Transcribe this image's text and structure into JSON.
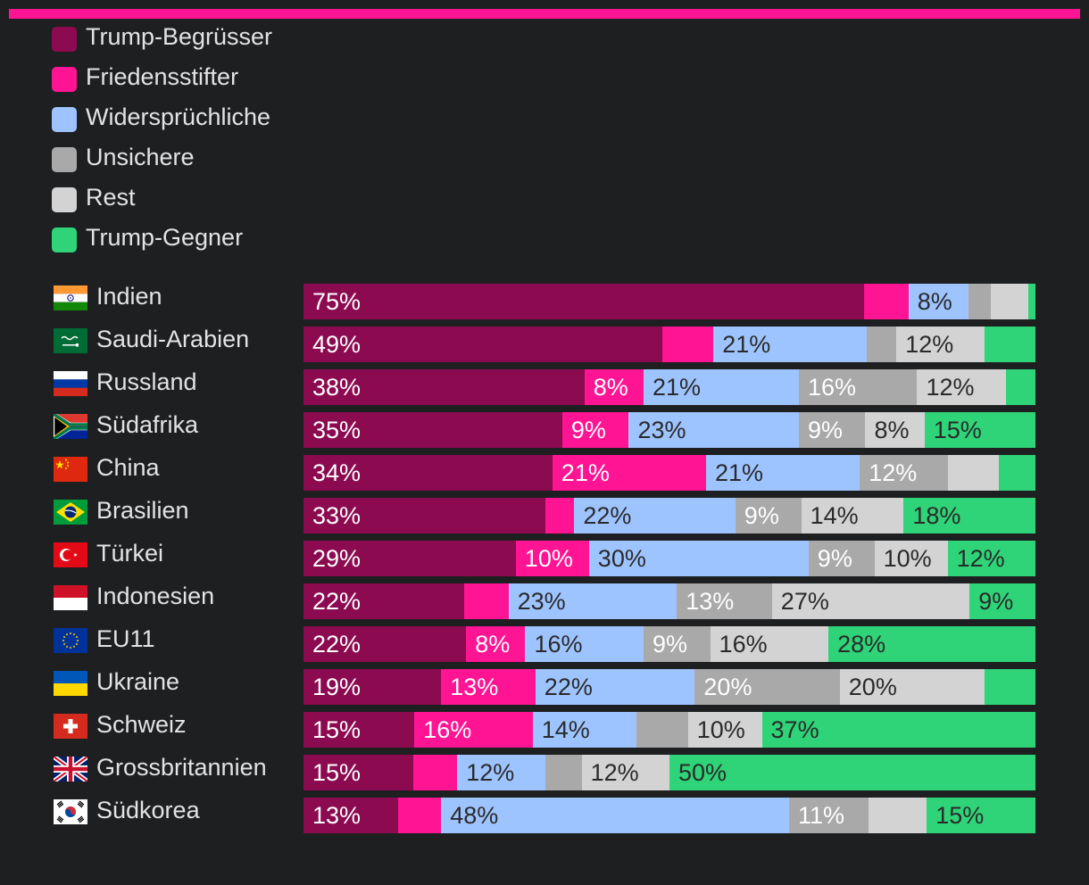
{
  "chart_data": {
    "type": "bar",
    "orientation": "horizontal",
    "stacked": true,
    "unit": "%",
    "series": [
      {
        "key": "begruesser",
        "name": "Trump-Begrüsser",
        "color": "#8b0a50",
        "text_color": "#ffffff"
      },
      {
        "key": "friedensstifter",
        "name": "Friedensstifter",
        "color": "#ff1493",
        "text_color": "#ffffff"
      },
      {
        "key": "widerspruechliche",
        "name": "Widersprüchliche",
        "color": "#9ec4ff",
        "text_color": "#2a2a2a"
      },
      {
        "key": "unsichere",
        "name": "Unsichere",
        "color": "#a9a9a9",
        "text_color": "#ffffff"
      },
      {
        "key": "rest",
        "name": "Rest",
        "color": "#d3d3d3",
        "text_color": "#2a2a2a"
      },
      {
        "key": "gegner",
        "name": "Trump-Gegner",
        "color": "#2ed477",
        "text_color": "#2a2a2a"
      }
    ],
    "categories": [
      {
        "name": "Indien",
        "flag": "india",
        "values": [
          75,
          6,
          8,
          3,
          5,
          1
        ],
        "labels": [
          "75%",
          "",
          "8%",
          "",
          "",
          ""
        ]
      },
      {
        "name": "Saudi-Arabien",
        "flag": "saudi",
        "values": [
          49,
          7,
          21,
          4,
          12,
          7
        ],
        "labels": [
          "49%",
          "",
          "21%",
          "",
          "12%",
          ""
        ]
      },
      {
        "name": "Russland",
        "flag": "russia",
        "values": [
          38,
          8,
          21,
          16,
          12,
          4
        ],
        "labels": [
          "38%",
          "8%",
          "21%",
          "16%",
          "12%",
          ""
        ]
      },
      {
        "name": "Südafrika",
        "flag": "southafrica",
        "values": [
          35,
          9,
          23,
          9,
          8,
          15
        ],
        "labels": [
          "35%",
          "9%",
          "23%",
          "9%",
          "8%",
          "15%"
        ]
      },
      {
        "name": "China",
        "flag": "china",
        "values": [
          34,
          21,
          21,
          12,
          7,
          5
        ],
        "labels": [
          "34%",
          "21%",
          "21%",
          "12%",
          "",
          ""
        ]
      },
      {
        "name": "Brasilien",
        "flag": "brazil",
        "values": [
          33,
          4,
          22,
          9,
          14,
          18
        ],
        "labels": [
          "33%",
          "",
          "22%",
          "9%",
          "14%",
          "18%"
        ]
      },
      {
        "name": "Türkei",
        "flag": "turkey",
        "values": [
          29,
          10,
          30,
          9,
          10,
          12
        ],
        "labels": [
          "29%",
          "10%",
          "30%",
          "9%",
          "10%",
          "12%"
        ]
      },
      {
        "name": "Indonesien",
        "flag": "indonesia",
        "values": [
          22,
          6,
          23,
          13,
          27,
          9
        ],
        "labels": [
          "22%",
          "",
          "23%",
          "13%",
          "27%",
          "9%"
        ]
      },
      {
        "name": "EU11",
        "flag": "eu",
        "values": [
          22,
          8,
          16,
          9,
          16,
          28
        ],
        "labels": [
          "22%",
          "8%",
          "16%",
          "9%",
          "16%",
          "28%"
        ]
      },
      {
        "name": "Ukraine",
        "flag": "ukraine",
        "values": [
          19,
          13,
          22,
          20,
          20,
          7
        ],
        "labels": [
          "19%",
          "13%",
          "22%",
          "20%",
          "20%",
          ""
        ]
      },
      {
        "name": "Schweiz",
        "flag": "switzerland",
        "values": [
          15,
          16,
          14,
          7,
          10,
          37
        ],
        "labels": [
          "15%",
          "16%",
          "14%",
          "",
          "10%",
          "37%"
        ]
      },
      {
        "name": "Grossbritannien",
        "flag": "uk",
        "values": [
          15,
          6,
          12,
          5,
          12,
          50
        ],
        "labels": [
          "15%",
          "",
          "12%",
          "",
          "12%",
          "50%"
        ]
      },
      {
        "name": "Südkorea",
        "flag": "southkorea",
        "values": [
          13,
          6,
          48,
          11,
          8,
          15
        ],
        "labels": [
          "13%",
          "",
          "48%",
          "11%",
          "",
          "15%"
        ]
      }
    ]
  }
}
